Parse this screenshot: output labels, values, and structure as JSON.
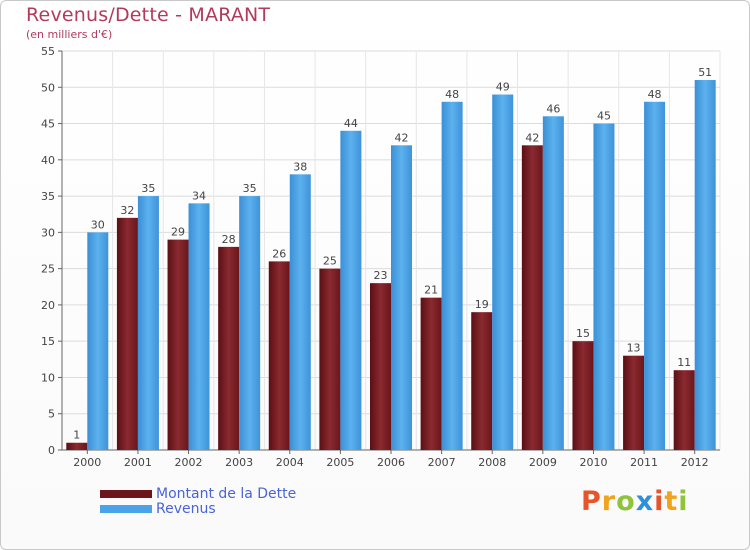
{
  "header": {
    "title": "Revenus/Dette - MARANT",
    "subtitle": "(en milliers d'€)"
  },
  "legend": {
    "items": [
      {
        "label": "Montant de la Dette",
        "color": "#7a1f24"
      },
      {
        "label": "Revenus",
        "color": "#4aa3e8"
      }
    ]
  },
  "logo": {
    "letters": [
      "P",
      "r",
      "o",
      "x",
      "i",
      "t",
      "i"
    ],
    "colors": [
      "#e8542a",
      "#f0a31c",
      "#8fc33a",
      "#2f8fd8",
      "#e8542a",
      "#f0a31c",
      "#8fc33a"
    ]
  },
  "chart_data": {
    "type": "bar",
    "title": "Revenus/Dette - MARANT",
    "subtitle": "(en milliers d'€)",
    "categories": [
      "2000",
      "2001",
      "2002",
      "2003",
      "2004",
      "2005",
      "2006",
      "2007",
      "2008",
      "2009",
      "2010",
      "2011",
      "2012"
    ],
    "series": [
      {
        "name": "Montant de la Dette",
        "color": "#7a1f24",
        "values": [
          1,
          32,
          29,
          28,
          26,
          25,
          23,
          21,
          19,
          42,
          15,
          13,
          11
        ]
      },
      {
        "name": "Revenus",
        "color": "#4aa3e8",
        "values": [
          30,
          35,
          34,
          35,
          38,
          44,
          42,
          48,
          49,
          46,
          45,
          48,
          51
        ]
      }
    ],
    "ylim": [
      0,
      55
    ],
    "yticks": [
      0,
      5,
      10,
      15,
      20,
      25,
      30,
      35,
      40,
      45,
      50,
      55
    ],
    "grid": true,
    "legend_position": "bottom-left"
  }
}
